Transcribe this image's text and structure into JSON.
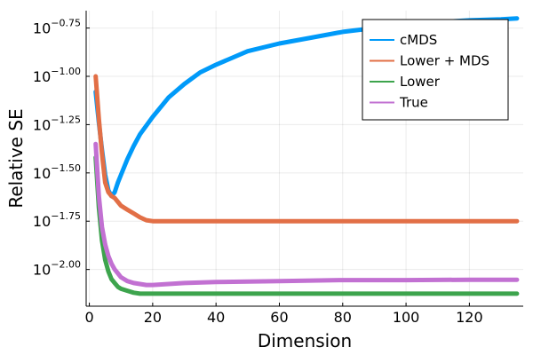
{
  "chart_data": {
    "type": "line",
    "title": "",
    "xlabel": "Dimension",
    "ylabel": "Relative SE",
    "yscale": "log10",
    "xlim": [
      -1,
      137
    ],
    "ylim_log10": [
      -2.19,
      -0.66
    ],
    "grid": true,
    "legend_position": "top-right",
    "x_ticks": [
      {
        "value": 0,
        "label": "0"
      },
      {
        "value": 20,
        "label": "20"
      },
      {
        "value": 40,
        "label": "40"
      },
      {
        "value": 60,
        "label": "60"
      },
      {
        "value": 80,
        "label": "80"
      },
      {
        "value": 100,
        "label": "100"
      },
      {
        "value": 120,
        "label": "120"
      }
    ],
    "y_ticks": [
      {
        "log": -0.75,
        "base": "10",
        "exp": "−0.75"
      },
      {
        "log": -1.0,
        "base": "10",
        "exp": "−1.00"
      },
      {
        "log": -1.25,
        "base": "10",
        "exp": "−1.25"
      },
      {
        "log": -1.5,
        "base": "10",
        "exp": "−1.50"
      },
      {
        "log": -1.75,
        "base": "10",
        "exp": "−1.75"
      },
      {
        "log": -2.0,
        "base": "10",
        "exp": "−2.00"
      }
    ],
    "series": [
      {
        "name": "cMDS",
        "color": "#009af9",
        "x": [
          2,
          3,
          4,
          5,
          6,
          7,
          8,
          9,
          10,
          12,
          14,
          16,
          20,
          25,
          30,
          35,
          40,
          50,
          60,
          70,
          80,
          90,
          100,
          110,
          120,
          130,
          135
        ],
        "log_y": [
          -1.08,
          -1.24,
          -1.38,
          -1.51,
          -1.59,
          -1.62,
          -1.6,
          -1.55,
          -1.51,
          -1.43,
          -1.36,
          -1.3,
          -1.21,
          -1.11,
          -1.04,
          -0.98,
          -0.94,
          -0.87,
          -0.83,
          -0.8,
          -0.77,
          -0.75,
          -0.73,
          -0.72,
          -0.71,
          -0.705,
          -0.7
        ]
      },
      {
        "name": "Lower + MDS",
        "color": "#e26f46",
        "x": [
          2,
          3,
          4,
          5,
          6,
          7,
          8,
          9,
          10,
          12,
          14,
          16,
          18,
          20,
          25,
          30,
          40,
          60,
          80,
          100,
          120,
          135
        ],
        "log_y": [
          -1.0,
          -1.22,
          -1.4,
          -1.55,
          -1.6,
          -1.62,
          -1.63,
          -1.65,
          -1.67,
          -1.69,
          -1.71,
          -1.73,
          -1.745,
          -1.75,
          -1.75,
          -1.75,
          -1.75,
          -1.75,
          -1.75,
          -1.75,
          -1.75,
          -1.75
        ]
      },
      {
        "name": "Lower",
        "color": "#3da44d",
        "x": [
          2,
          3,
          4,
          5,
          6,
          7,
          8,
          9,
          10,
          12,
          14,
          16,
          20,
          25,
          30,
          40,
          60,
          80,
          100,
          120,
          135
        ],
        "log_y": [
          -1.42,
          -1.68,
          -1.85,
          -1.95,
          -2.01,
          -2.05,
          -2.07,
          -2.09,
          -2.1,
          -2.11,
          -2.12,
          -2.125,
          -2.125,
          -2.125,
          -2.125,
          -2.125,
          -2.125,
          -2.125,
          -2.125,
          -2.125,
          -2.125
        ]
      },
      {
        "name": "True",
        "color": "#c271d2",
        "x": [
          2,
          3,
          4,
          5,
          6,
          7,
          8,
          9,
          10,
          12,
          14,
          16,
          18,
          20,
          25,
          30,
          40,
          60,
          80,
          100,
          120,
          135
        ],
        "log_y": [
          -1.35,
          -1.62,
          -1.78,
          -1.87,
          -1.93,
          -1.97,
          -2.0,
          -2.02,
          -2.04,
          -2.06,
          -2.07,
          -2.075,
          -2.08,
          -2.08,
          -2.075,
          -2.07,
          -2.065,
          -2.06,
          -2.055,
          -2.055,
          -2.053,
          -2.053
        ]
      }
    ]
  }
}
